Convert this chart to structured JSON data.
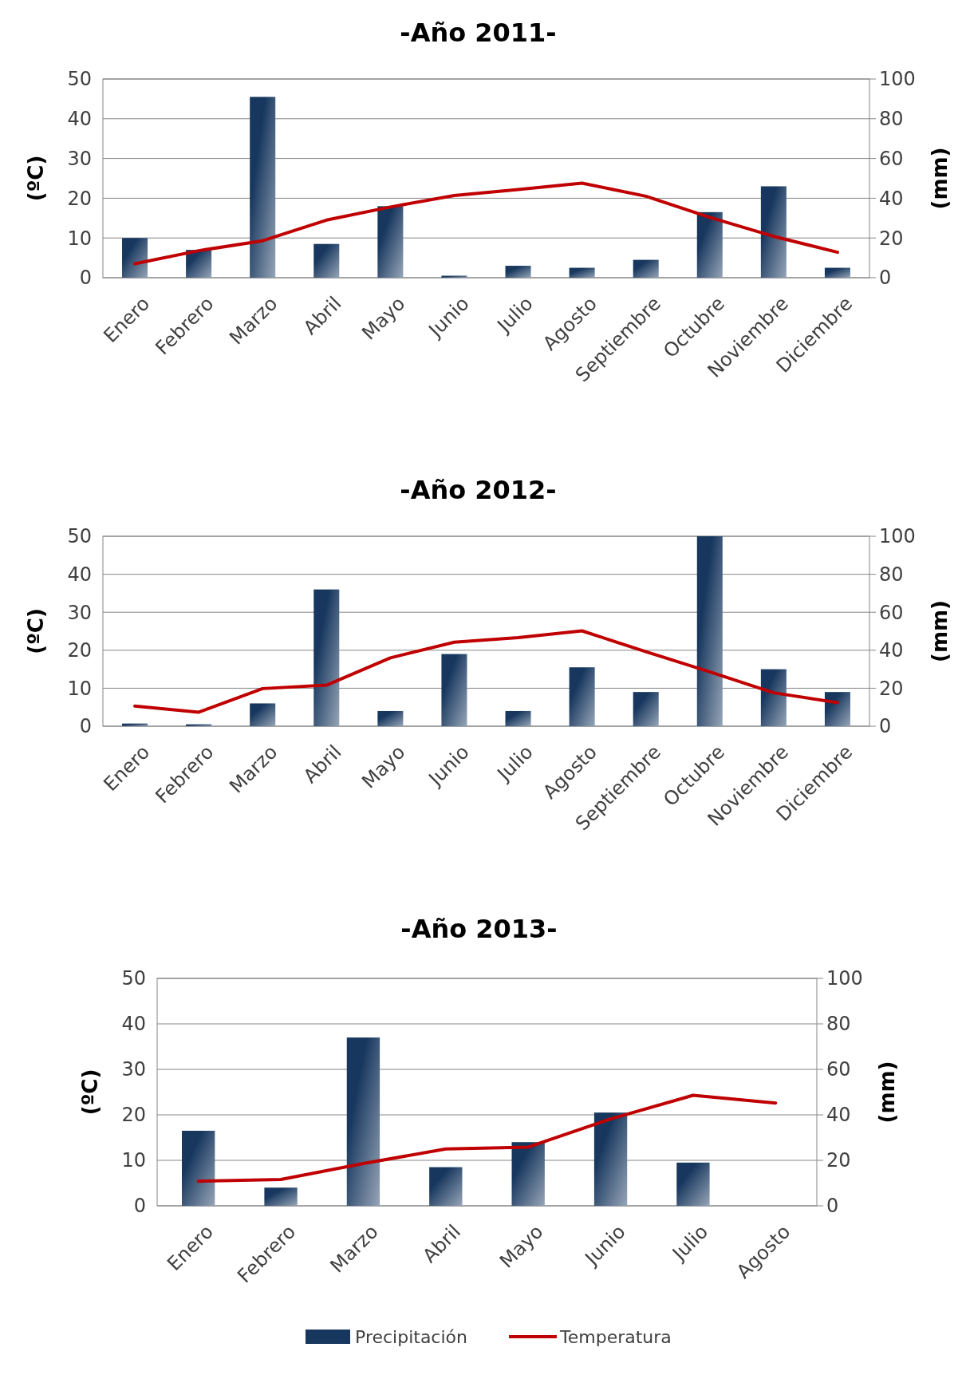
{
  "chart_data": [
    {
      "type": "bar",
      "title": "-Año 2011-",
      "ylabel": "(ºC)",
      "y2label": "(mm)",
      "categories": [
        "Enero",
        "Febrero",
        "Marzo",
        "Abril",
        "Mayo",
        "Junio",
        "Julio",
        "Agosto",
        "Septiembre",
        "Octubre",
        "Noviembre",
        "Diciembre"
      ],
      "series": [
        {
          "axis": "y2",
          "color": "#17375e",
          "values": [
            20,
            14,
            91,
            17,
            36,
            1,
            6,
            5,
            9,
            33,
            46,
            5
          ]
        },
        {
          "type": "line",
          "axis": "y",
          "color": "#c00000",
          "values": [
            3.5,
            6.8,
            9.3,
            14.5,
            17.8,
            20.7,
            22.2,
            23.8,
            20.5,
            15.2,
            10.4,
            6.4
          ]
        }
      ],
      "ylim": [
        0,
        50
      ],
      "yticks": [
        0,
        10,
        20,
        30,
        40,
        50
      ],
      "y2lim": [
        0,
        100
      ],
      "y2ticks": [
        0,
        20,
        40,
        60,
        80,
        100
      ],
      "grid": "y",
      "legend": false,
      "marker": "none",
      "line_style": "solid"
    },
    {
      "type": "bar",
      "title": "-Año 2012-",
      "ylabel": "(ºC)",
      "y2label": "(mm)",
      "categories": [
        "Enero",
        "Febrero",
        "Marzo",
        "Abril",
        "Mayo",
        "Junio",
        "Julio",
        "Agosto",
        "Septiembre",
        "Octubre",
        "Noviembre",
        "Diciembre"
      ],
      "series": [
        {
          "axis": "y2",
          "color": "#17375e",
          "values": [
            1.4,
            1,
            12,
            72,
            8,
            38,
            8,
            31,
            18,
            100,
            30,
            18
          ]
        },
        {
          "type": "line",
          "axis": "y",
          "color": "#c00000",
          "values": [
            5.3,
            3.7,
            9.9,
            10.8,
            18,
            22.1,
            23.3,
            25.1,
            19.6,
            14.3,
            8.8,
            6.2
          ]
        }
      ],
      "ylim": [
        0,
        50
      ],
      "yticks": [
        0,
        10,
        20,
        30,
        40,
        50
      ],
      "y2lim": [
        0,
        100
      ],
      "y2ticks": [
        0,
        20,
        40,
        60,
        80,
        100
      ],
      "grid": "y",
      "legend": false,
      "marker": "none",
      "line_style": "solid"
    },
    {
      "type": "bar",
      "title": "-Año 2013-",
      "ylabel": "(ºC)",
      "y2label": "(mm)",
      "categories": [
        "Enero",
        "Febrero",
        "Marzo",
        "Abril",
        "Mayo",
        "Junio",
        "Julio",
        "Agosto"
      ],
      "series": [
        {
          "axis": "y2",
          "name": "Precipitación",
          "color": "#17375e",
          "values": [
            33,
            8,
            74,
            17,
            28,
            41,
            19,
            null
          ]
        },
        {
          "type": "line",
          "axis": "y",
          "name": "Temperatura",
          "color": "#c00000",
          "values": [
            5.4,
            5.8,
            9.3,
            12.5,
            12.9,
            19.1,
            24.3,
            22.6
          ]
        }
      ],
      "ylim": [
        0,
        50
      ],
      "yticks": [
        0,
        10,
        20,
        30,
        40,
        50
      ],
      "y2lim": [
        0,
        100
      ],
      "y2ticks": [
        0,
        20,
        40,
        60,
        80,
        100
      ],
      "grid": "y",
      "legend": "bottom",
      "marker": "none",
      "line_style": "solid"
    }
  ]
}
